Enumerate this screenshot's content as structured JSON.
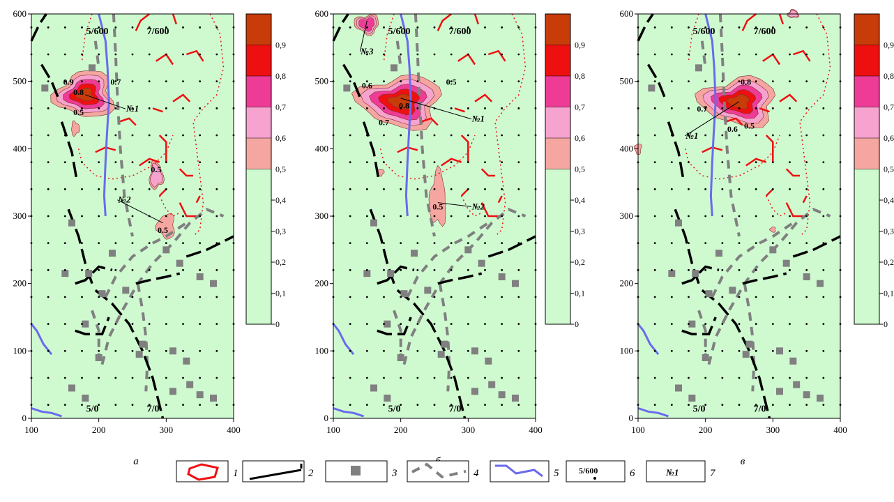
{
  "chart_data": [
    {
      "type": "heatmap",
      "panel_label": "а",
      "xlim": [
        100,
        400
      ],
      "ylim": [
        0,
        600
      ],
      "x_ticks": [
        "100",
        "200",
        "300",
        "400"
      ],
      "y_ticks": [
        "0",
        "100",
        "200",
        "300",
        "400",
        "500",
        "600"
      ],
      "corner_labels": [
        "5/600",
        "7/600",
        "5/0",
        "7/0"
      ],
      "contour_labels": [
        "0.9",
        "0.8",
        "0.7",
        "0.5",
        "0.5",
        "0.5"
      ],
      "anomaly_labels": [
        "№1",
        "№2"
      ],
      "anomalies": [
        {
          "x": 180,
          "y": 480,
          "peak": 0.9
        },
        {
          "x": 295,
          "y": 290,
          "peak": 0.6
        }
      ]
    },
    {
      "type": "heatmap",
      "panel_label": "б",
      "xlim": [
        100,
        400
      ],
      "ylim": [
        0,
        600
      ],
      "x_ticks": [
        "100",
        "200",
        "300",
        "400"
      ],
      "y_ticks": [
        "0",
        "100",
        "200",
        "300",
        "400",
        "500",
        "600"
      ],
      "corner_labels": [
        "5/600",
        "7/600",
        "5/0",
        "7/0"
      ],
      "contour_labels": [
        "0.6",
        "0.8",
        "0.5",
        "0.7",
        "0.5"
      ],
      "anomaly_labels": [
        "№3",
        "№1",
        "№2"
      ],
      "anomalies": [
        {
          "x": 150,
          "y": 590,
          "peak": 0.7
        },
        {
          "x": 200,
          "y": 475,
          "peak": 0.9
        },
        {
          "x": 255,
          "y": 320,
          "peak": 0.6
        }
      ]
    },
    {
      "type": "heatmap",
      "panel_label": "в",
      "xlim": [
        100,
        400
      ],
      "ylim": [
        0,
        600
      ],
      "x_ticks": [
        "100",
        "200",
        "300",
        "400"
      ],
      "y_ticks": [
        "0",
        "100",
        "200",
        "300",
        "400",
        "500",
        "600"
      ],
      "corner_labels": [
        "5/600",
        "7/600",
        "5/0",
        "7/0"
      ],
      "contour_labels": [
        "0.8",
        "0.7",
        "0.5",
        "0.6"
      ],
      "anomaly_labels": [
        "№1"
      ],
      "anomalies": [
        {
          "x": 250,
          "y": 470,
          "peak": 0.9
        }
      ]
    }
  ],
  "colorbar": {
    "ticks": [
      "0,9",
      "0,8",
      "0,7",
      "0,6",
      "0,5",
      "0,4",
      "0,3",
      "0,2",
      "0,1",
      "0"
    ],
    "bands": [
      {
        "from": 0.9,
        "to": 1.0,
        "color": "#c83c0a"
      },
      {
        "from": 0.8,
        "to": 0.9,
        "color": "#ee1010"
      },
      {
        "from": 0.7,
        "to": 0.8,
        "color": "#ee3c96"
      },
      {
        "from": 0.6,
        "to": 0.7,
        "color": "#f7a3cf"
      },
      {
        "from": 0.5,
        "to": 0.6,
        "color": "#f5a6a0"
      },
      {
        "from": 0.0,
        "to": 0.5,
        "color": "#cffad0"
      }
    ]
  },
  "legend": {
    "numbers": [
      "1",
      "2",
      "3",
      "4",
      "5",
      "6",
      "7"
    ],
    "sample_6": "5/600",
    "sample_7": "№1"
  },
  "colors": {
    "background": "#cffad0",
    "red_line": "#ee1010",
    "black_line": "#000000",
    "gray": "#808080",
    "blue": "#6a6aee"
  }
}
